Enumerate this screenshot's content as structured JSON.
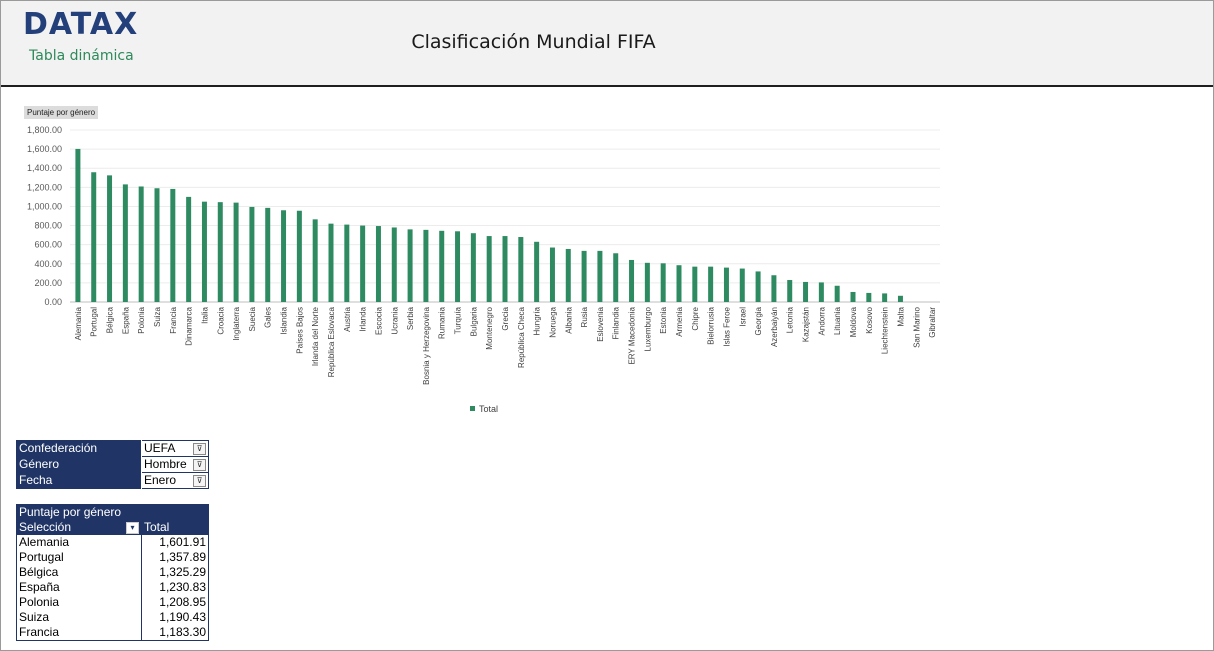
{
  "header": {
    "logo": "DATAX",
    "subtitle": "Tabla dinámica",
    "title": "Clasificación Mundial FIFA"
  },
  "chart_button_label": "Puntaje por género",
  "chart_data": {
    "type": "bar",
    "categories": [
      "Alemania",
      "Portugal",
      "Bélgica",
      "España",
      "Polonia",
      "Suiza",
      "Francia",
      "Dinamarca",
      "Italia",
      "Croacia",
      "Inglaterra",
      "Suecia",
      "Gales",
      "Islandia",
      "Países Bajos",
      "Irlanda del Norte",
      "República Eslovaca",
      "Austria",
      "Irlanda",
      "Escocia",
      "Ucrania",
      "Serbia",
      "Bosnia y Herzegovina",
      "Rumania",
      "Turquía",
      "Bulgaria",
      "Montenegro",
      "Grecia",
      "República Checa",
      "Hungría",
      "Noruega",
      "Albania",
      "Rusia",
      "Eslovenia",
      "Finlandia",
      "ERY Macedonia",
      "Luxemburgo",
      "Estonia",
      "Armenia",
      "Chipre",
      "Bielorrusia",
      "Islas Feroe",
      "Israel",
      "Georgia",
      "Azerbaiyán",
      "Letonia",
      "Kazajstán",
      "Andorra",
      "Lituania",
      "Moldova",
      "Kosovo",
      "Liechtenstein",
      "Malta",
      "San Marino",
      "Gibraltar"
    ],
    "series": [
      {
        "name": "Total",
        "values": [
          1601.91,
          1357.89,
          1325.29,
          1230.83,
          1208.95,
          1190.43,
          1183.3,
          1100,
          1050,
          1045,
          1040,
          995,
          985,
          960,
          955,
          865,
          820,
          810,
          800,
          795,
          780,
          760,
          755,
          745,
          740,
          720,
          690,
          690,
          680,
          630,
          570,
          555,
          535,
          535,
          510,
          440,
          410,
          405,
          385,
          370,
          370,
          360,
          350,
          320,
          280,
          230,
          210,
          205,
          170,
          105,
          95,
          90,
          65,
          0,
          0
        ]
      }
    ],
    "ylim": [
      0,
      1800
    ],
    "yticks": [
      "0.00",
      "200.00",
      "400.00",
      "600.00",
      "800.00",
      "1,000.00",
      "1,200.00",
      "1,400.00",
      "1,600.00",
      "1,800.00"
    ],
    "grid": true,
    "legend_position": "bottom",
    "color": "#2e8b61"
  },
  "filters": [
    {
      "label": "Confederación",
      "value": "UEFA"
    },
    {
      "label": "Género",
      "value": "Hombre"
    },
    {
      "label": "Fecha",
      "value": "Enero"
    }
  ],
  "pivot": {
    "title": "Puntaje por género",
    "col1": "Selección",
    "col2": "Total",
    "rows": [
      {
        "name": "Alemania",
        "value": "1,601.91"
      },
      {
        "name": "Portugal",
        "value": "1,357.89"
      },
      {
        "name": "Bélgica",
        "value": "1,325.29"
      },
      {
        "name": "España",
        "value": "1,230.83"
      },
      {
        "name": "Polonia",
        "value": "1,208.95"
      },
      {
        "name": "Suiza",
        "value": "1,190.43"
      },
      {
        "name": "Francia",
        "value": "1,183.30"
      }
    ]
  }
}
